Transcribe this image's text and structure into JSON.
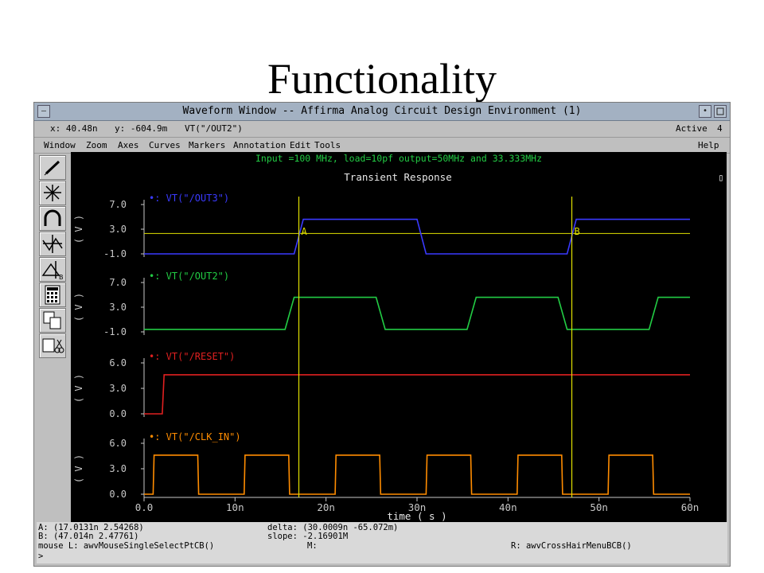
{
  "slide": {
    "title": "Functionality"
  },
  "window": {
    "title": "Waveform Window -- Affirma Analog Circuit Design Environment (1)",
    "minimize_glyph": "•",
    "close_glyph": "—"
  },
  "status": {
    "x": "x: 40.48n",
    "y": "y: -604.9m",
    "signal": "VT(\"/OUT2\")",
    "active_label": "Active",
    "active_num": "4"
  },
  "menu": [
    "Window",
    "Zoom",
    "Axes",
    "Curves",
    "Markers",
    "Annotation",
    "Edit",
    "Tools",
    "Help"
  ],
  "tools": [
    "pen-icon",
    "crosshair-icon",
    "magnet-icon",
    "split-icon",
    "delta-icon",
    "calculator-icon",
    "copy-icon",
    "cut-icon"
  ],
  "plot": {
    "subtitle": "Input =100 MHz, load=10pf output=50MHz and 33.333MHz",
    "title": "Transient Response",
    "xlabel": "time ( s )",
    "ylabel": "( V )",
    "box_glyph": "▯"
  },
  "chart_data": {
    "type": "line",
    "title": "Transient Response",
    "xlabel": "time ( s )",
    "x_ticks": [
      "0.0",
      "10n",
      "20n",
      "30n",
      "40n",
      "50n",
      "60n"
    ],
    "xlim": [
      0,
      60
    ],
    "markers": [
      {
        "label": "A",
        "x": 17.0131
      },
      {
        "label": "B",
        "x": 47.014
      }
    ],
    "colors": {
      "OUT3": "#3a3aff",
      "OUT2": "#22cc44",
      "RESET": "#e02020",
      "CLK_IN": "#ff8c00",
      "marker": "#e0e000",
      "axis": "#c8c8c8"
    },
    "subplots": [
      {
        "name": "VT(\"/OUT3\")",
        "key": "OUT3",
        "ylabel": "( V )",
        "ylim": [
          -1,
          7
        ],
        "yticks": [
          "7.0",
          "3.0",
          "-1.0"
        ],
        "ytick_values": [
          7,
          3,
          -1
        ],
        "points": [
          [
            0,
            -1.0
          ],
          [
            16.5,
            -1.0
          ],
          [
            17.5,
            4.6
          ],
          [
            30.0,
            4.6
          ],
          [
            31.0,
            -1.0
          ],
          [
            46.5,
            -1.0
          ],
          [
            47.5,
            4.6
          ],
          [
            60,
            4.6
          ]
        ],
        "hline": 2.3
      },
      {
        "name": "VT(\"/OUT2\")",
        "key": "OUT2",
        "ylabel": "( V )",
        "ylim": [
          -1,
          7
        ],
        "yticks": [
          "7.0",
          "3.0",
          "-1.0"
        ],
        "ytick_values": [
          7,
          3,
          -1
        ],
        "points": [
          [
            0,
            -0.6
          ],
          [
            15.5,
            -0.6
          ],
          [
            16.5,
            4.6
          ],
          [
            25.5,
            4.6
          ],
          [
            26.5,
            -0.6
          ],
          [
            35.5,
            -0.6
          ],
          [
            36.5,
            4.6
          ],
          [
            45.5,
            4.6
          ],
          [
            46.5,
            -0.6
          ],
          [
            55.5,
            -0.6
          ],
          [
            56.5,
            4.6
          ],
          [
            60,
            4.6
          ]
        ]
      },
      {
        "name": "VT(\"/RESET\")",
        "key": "RESET",
        "ylabel": "( V )",
        "ylim": [
          0,
          6
        ],
        "yticks": [
          "6.0",
          "3.0",
          "0.0"
        ],
        "ytick_values": [
          6,
          3,
          0
        ],
        "points": [
          [
            0,
            0
          ],
          [
            2.0,
            0
          ],
          [
            2.2,
            4.6
          ],
          [
            60,
            4.6
          ]
        ]
      },
      {
        "name": "VT(\"/CLK_IN\")",
        "key": "CLK_IN",
        "ylabel": "( V )",
        "ylim": [
          0,
          6
        ],
        "yticks": [
          "6.0",
          "3.0",
          "0.0"
        ],
        "ytick_values": [
          6,
          3,
          0
        ],
        "points": [
          [
            0,
            0
          ],
          [
            1.0,
            0
          ],
          [
            1.1,
            4.6
          ],
          [
            5.9,
            4.6
          ],
          [
            6.0,
            0
          ],
          [
            11.0,
            0
          ],
          [
            11.1,
            4.6
          ],
          [
            15.9,
            4.6
          ],
          [
            16.0,
            0
          ],
          [
            21.0,
            0
          ],
          [
            21.1,
            4.6
          ],
          [
            25.9,
            4.6
          ],
          [
            26.0,
            0
          ],
          [
            31.0,
            0
          ],
          [
            31.1,
            4.6
          ],
          [
            35.9,
            4.6
          ],
          [
            36.0,
            0
          ],
          [
            41.0,
            0
          ],
          [
            41.1,
            4.6
          ],
          [
            45.9,
            4.6
          ],
          [
            46.0,
            0
          ],
          [
            51.0,
            0
          ],
          [
            51.1,
            4.6
          ],
          [
            55.9,
            4.6
          ],
          [
            56.0,
            0
          ],
          [
            60,
            0
          ]
        ]
      }
    ]
  },
  "info": {
    "a_point": "A: (17.0131n 2.54268)",
    "b_point": "B: (47.014n 2.47761)",
    "delta": "delta: (30.0009n -65.072m)",
    "slope": "slope: -2.16901M",
    "mouse_l": "mouse L: awvMouseSingleSelectPtCB()",
    "mouse_m": "M:",
    "mouse_r": "R: awvCrossHairMenuBCB()",
    "prompt": ">"
  }
}
